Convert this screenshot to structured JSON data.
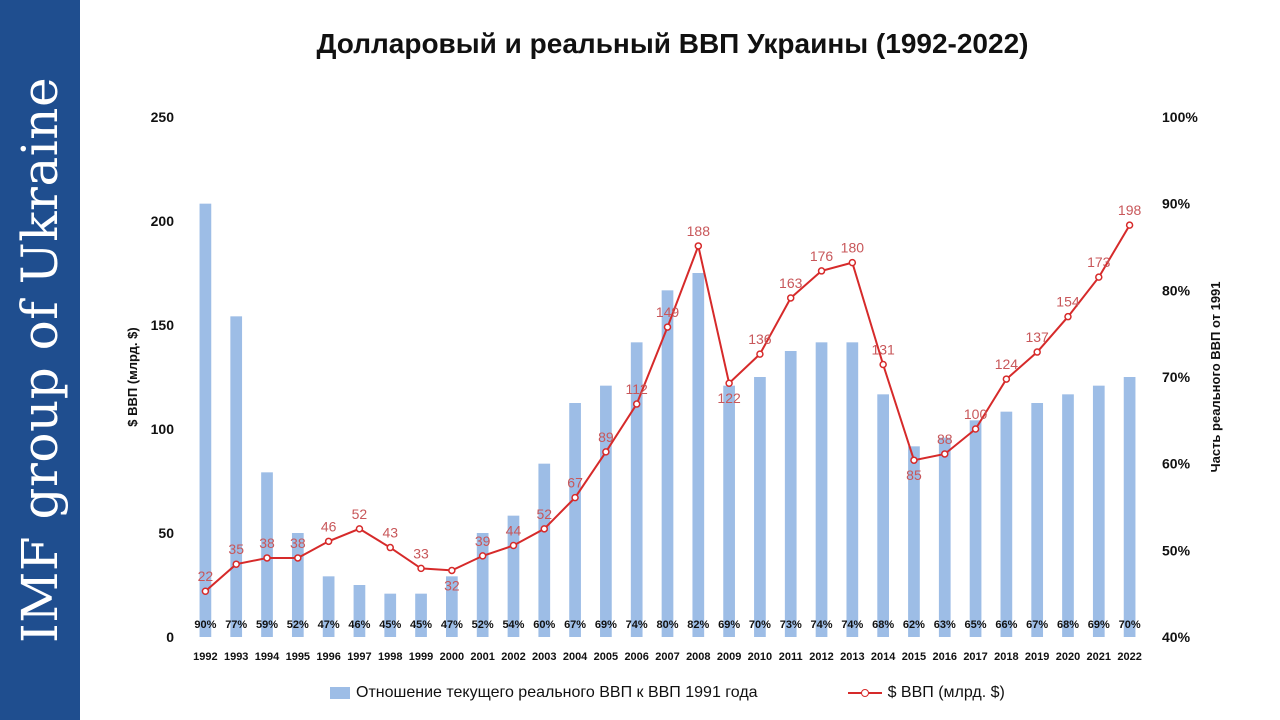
{
  "brand": "IMF group of Ukraine",
  "colors": {
    "sidebar": "#1f4e8f",
    "bars": "#9dbde6",
    "line": "#d62a2a",
    "line_labels": "#c8575a"
  },
  "chart_data": {
    "type": "bar+line",
    "title": "Долларовый и реальный ВВП Украины (1992-2022)",
    "categories": [
      "1992",
      "1993",
      "1994",
      "1995",
      "1996",
      "1997",
      "1998",
      "1999",
      "2000",
      "2001",
      "2002",
      "2003",
      "2004",
      "2005",
      "2006",
      "2007",
      "2008",
      "2009",
      "2010",
      "2011",
      "2012",
      "2013",
      "2014",
      "2015",
      "2016",
      "2017",
      "2018",
      "2019",
      "2020",
      "2021",
      "2022"
    ],
    "left_axis": {
      "label": "$ ВВП (млрд. $)",
      "range": [
        0,
        250
      ],
      "ticks": [
        "0",
        "50",
        "100",
        "150",
        "200",
        "250"
      ]
    },
    "right_axis": {
      "label": "Часть реального ВВП от 1991",
      "range": [
        40,
        100
      ],
      "ticks": [
        "40%",
        "50%",
        "60%",
        "70%",
        "80%",
        "90%",
        "100%"
      ]
    },
    "series": [
      {
        "name": "Отношение текущего реального ВВП к ВВП 1991 года",
        "type": "bar",
        "axis": "right",
        "values": [
          90,
          77,
          59,
          52,
          47,
          46,
          45,
          45,
          47,
          52,
          54,
          60,
          67,
          69,
          74,
          80,
          82,
          69,
          70,
          73,
          74,
          74,
          68,
          62,
          63,
          65,
          66,
          67,
          68,
          69,
          70
        ],
        "labels": [
          "90%",
          "77%",
          "59%",
          "52%",
          "47%",
          "46%",
          "45%",
          "45%",
          "47%",
          "52%",
          "54%",
          "60%",
          "67%",
          "69%",
          "74%",
          "80%",
          "82%",
          "69%",
          "70%",
          "73%",
          "74%",
          "74%",
          "68%",
          "62%",
          "63%",
          "65%",
          "66%",
          "67%",
          "68%",
          "69%",
          "70%"
        ]
      },
      {
        "name": "$ ВВП  (млрд. $)",
        "type": "line",
        "axis": "left",
        "values": [
          22,
          35,
          38,
          38,
          46,
          52,
          43,
          33,
          32,
          39,
          44,
          52,
          67,
          89,
          112,
          149,
          188,
          122,
          136,
          163,
          176,
          180,
          131,
          85,
          88,
          100,
          124,
          137,
          154,
          173,
          198
        ]
      }
    ],
    "legend_position": "bottom"
  }
}
